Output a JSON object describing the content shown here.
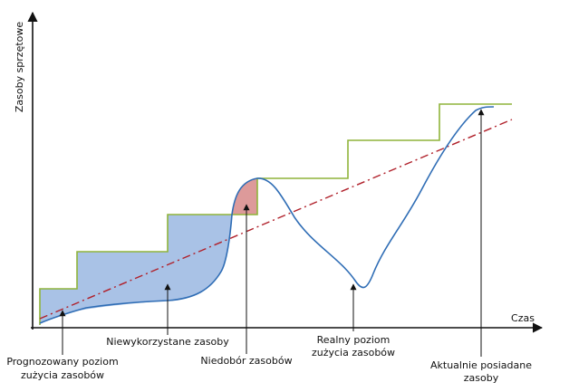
{
  "axes": {
    "y_label": "Zasoby sprzętowe",
    "x_label": "Czas"
  },
  "annotations": {
    "forecast_line1": "Prognozowany poziom",
    "forecast_line2": "zużycia zasobów",
    "unused": "Niewykorzystane zasoby",
    "shortage": "Niedobór zasobów",
    "real_line1": "Realny poziom",
    "real_line2": "zużycia zasobów",
    "owned_line1": "Aktualnie posiadane",
    "owned_line2": "zasoby"
  },
  "colors": {
    "axis": "#111111",
    "owned_resources": "#8fb43a",
    "real_usage": "#2f6db5",
    "forecast": "#b0202a",
    "unused_fill": "#a9c2e6",
    "shortage_fill": "#dd9a9a"
  }
}
